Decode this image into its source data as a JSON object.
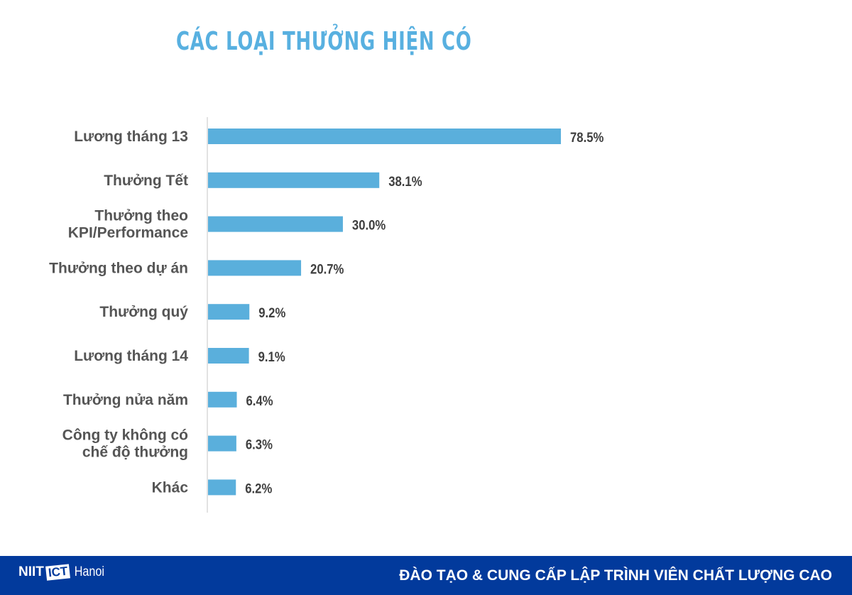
{
  "chart_data": {
    "type": "bar",
    "orientation": "horizontal",
    "title": "CÁC LOẠI THƯỞNG HIỆN CÓ",
    "categories": [
      [
        "Lương tháng 13"
      ],
      [
        "Thưởng Tết"
      ],
      [
        "Thưởng theo",
        "KPI/Performance"
      ],
      [
        "Thưởng theo dự án"
      ],
      [
        "Thưởng quý"
      ],
      [
        "Lương tháng 14"
      ],
      [
        "Thưởng nửa năm"
      ],
      [
        "Công ty không có",
        "chế độ thưởng"
      ],
      [
        "Khác"
      ]
    ],
    "values": [
      78.5,
      38.1,
      30.0,
      20.7,
      9.2,
      9.1,
      6.4,
      6.3,
      6.2
    ],
    "data_labels": [
      "78.5%",
      "38.1%",
      "30.0%",
      "20.7%",
      "9.2%",
      "9.1%",
      "6.4%",
      "6.3%",
      "6.2%"
    ],
    "bar_color": "#5aafdc",
    "grid": false
  },
  "footer": {
    "logo_text": "NIIT",
    "logo_box": "ICT",
    "logo_city": "Hanoi",
    "tagline": "ĐÀO TẠO & CUNG CẤP LẬP TRÌNH VIÊN CHẤT LƯỢNG CAO",
    "background": "#023a9c"
  }
}
